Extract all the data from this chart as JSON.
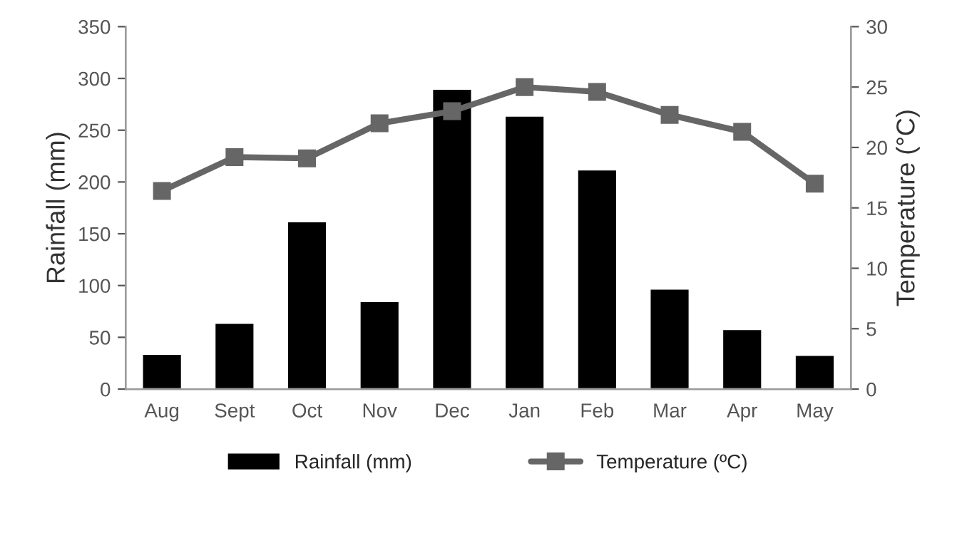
{
  "chart_data": {
    "type": "bar",
    "categories": [
      "Aug",
      "Sept",
      "Oct",
      "Nov",
      "Dec",
      "Jan",
      "Feb",
      "Mar",
      "Apr",
      "May"
    ],
    "series": [
      {
        "name": "Rainfall (mm)",
        "color": "#000000",
        "values": [
          34,
          64,
          162,
          85,
          290,
          264,
          212,
          97,
          58,
          33
        ]
      },
      {
        "name": "Temperature (ºC)",
        "type": "line",
        "axis": "y2",
        "color": "#666666",
        "marker": "square",
        "values": [
          16.4,
          19.2,
          19.1,
          22.0,
          23.0,
          25.0,
          24.6,
          22.7,
          21.3,
          17.0
        ]
      }
    ],
    "ylabel": "Rainfall (mm)",
    "y2label": "Temperature (°C)",
    "ylim": [
      0,
      350
    ],
    "yticks": [
      0,
      50,
      100,
      150,
      200,
      250,
      300,
      350
    ],
    "y2lim": [
      0,
      30
    ],
    "y2ticks": [
      0,
      5,
      10,
      15,
      20,
      25,
      30
    ],
    "grid": false,
    "legend": "bottom"
  }
}
